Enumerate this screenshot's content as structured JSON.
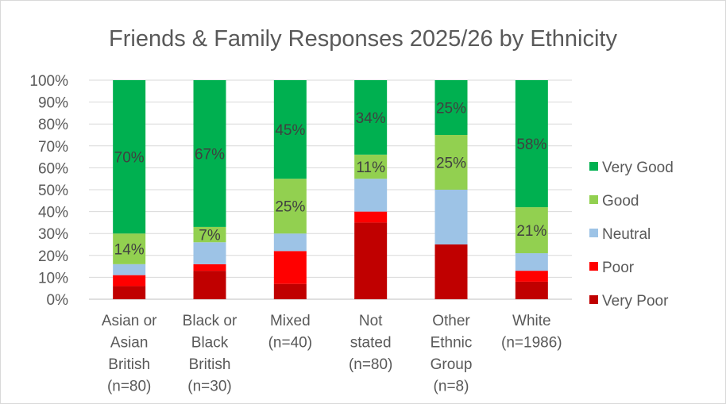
{
  "chart_data": {
    "type": "bar",
    "stacked": true,
    "title": "Friends & Family Responses 2025/26 by Ethnicity",
    "categories": [
      [
        "Asian or",
        "Asian",
        "British",
        "(n=80)"
      ],
      [
        "Black or",
        "Black",
        "British",
        "(n=30)"
      ],
      [
        "Mixed",
        "(n=40)"
      ],
      [
        "Not",
        "stated",
        "(n=80)"
      ],
      [
        "Other",
        "Ethnic",
        "Group",
        "(n=8)"
      ],
      [
        "White",
        "(n=1986)"
      ]
    ],
    "ylim": [
      0,
      100
    ],
    "yticks": [
      "0%",
      "10%",
      "20%",
      "30%",
      "40%",
      "50%",
      "60%",
      "70%",
      "80%",
      "90%",
      "100%"
    ],
    "grid": true,
    "legend_position": "right",
    "series": [
      {
        "name": "Very Poor",
        "color": "#C00000",
        "values": [
          6,
          13,
          7,
          35,
          25,
          8
        ],
        "labels": [
          "",
          "",
          "",
          "",
          "",
          ""
        ]
      },
      {
        "name": "Poor",
        "color": "#FF0000",
        "values": [
          5,
          3,
          15,
          5,
          0,
          5
        ],
        "labels": [
          "",
          "",
          "",
          "",
          "",
          ""
        ]
      },
      {
        "name": "Neutral",
        "color": "#9DC3E6",
        "values": [
          5,
          10,
          8,
          15,
          25,
          8
        ],
        "labels": [
          "",
          "",
          "",
          "",
          "",
          ""
        ]
      },
      {
        "name": "Good",
        "color": "#92D050",
        "values": [
          14,
          7,
          25,
          11,
          25,
          21
        ],
        "labels": [
          "14%",
          "7%",
          "25%",
          "11%",
          "25%",
          "21%"
        ]
      },
      {
        "name": "Very Good",
        "color": "#00B050",
        "values": [
          70,
          67,
          45,
          34,
          25,
          58
        ],
        "labels": [
          "70%",
          "67%",
          "45%",
          "34%",
          "25%",
          "58%"
        ]
      }
    ],
    "legend_order": [
      "Very Good",
      "Good",
      "Neutral",
      "Poor",
      "Very Poor"
    ]
  }
}
